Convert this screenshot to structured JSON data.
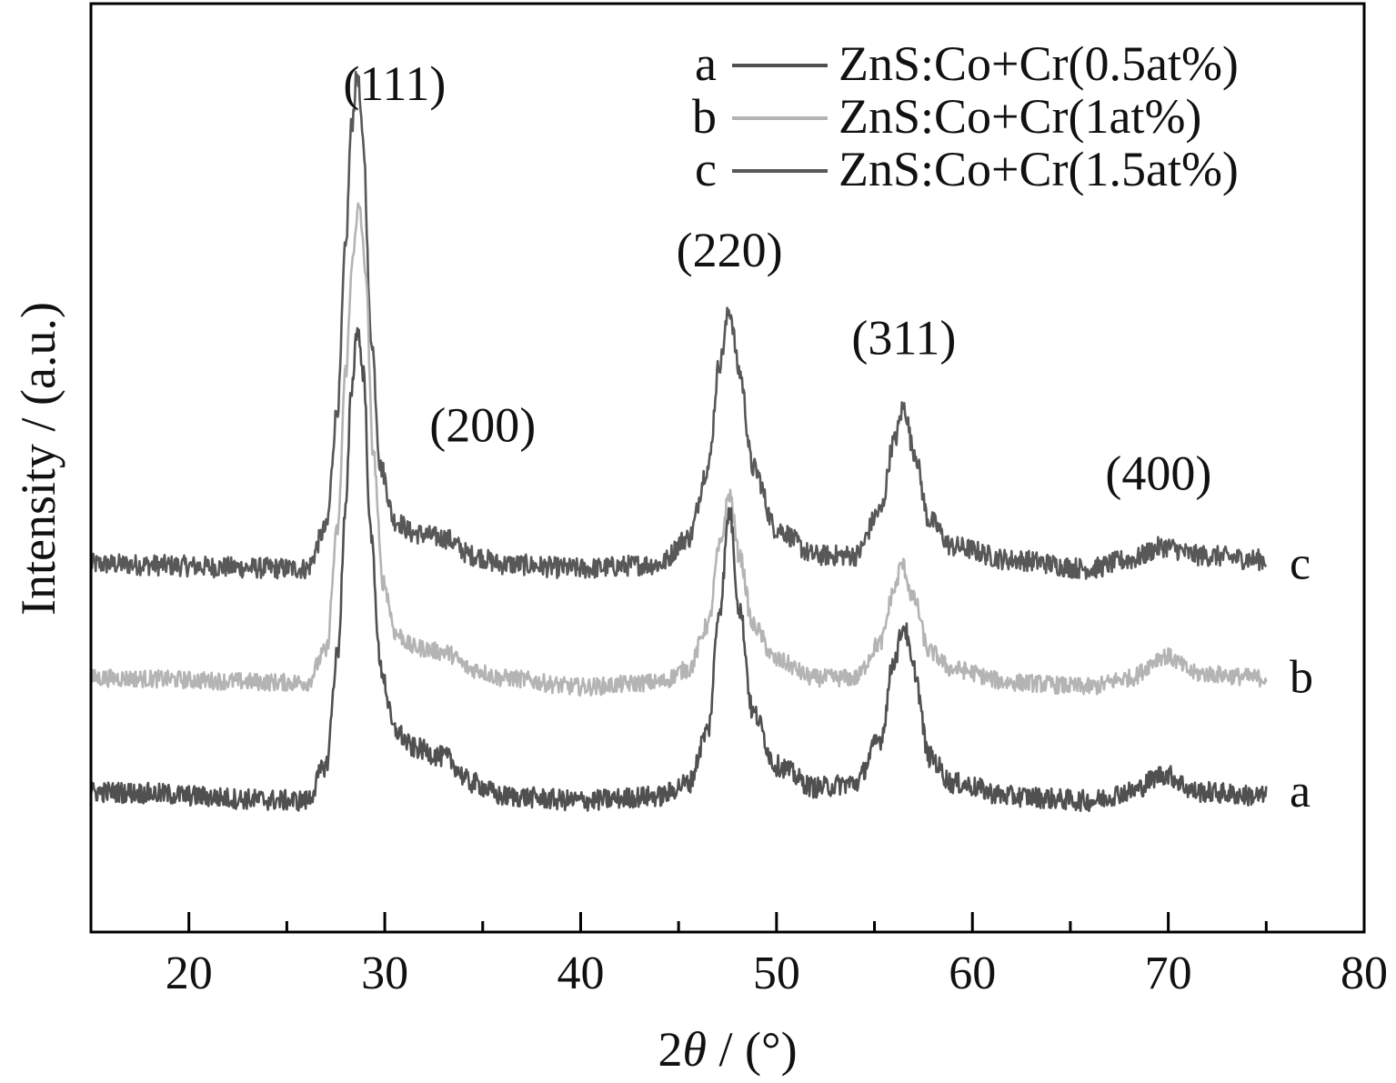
{
  "chart_data": {
    "type": "line",
    "title": "",
    "xlabel_prefix": "2",
    "xlabel_symbol": "θ",
    "xlabel_suffix": " / (°)",
    "ylabel": "Intensity / (a.u.)",
    "xlim": [
      15,
      80
    ],
    "xticks": [
      20,
      30,
      40,
      50,
      60,
      70,
      80
    ],
    "x_minor_ticks": [
      25,
      35,
      45,
      55,
      65,
      75
    ],
    "y_tick_labels": false,
    "grid": false,
    "legend_position": "top-right",
    "x_range": [
      15,
      75
    ],
    "series": [
      {
        "name": "ZnS:Co+Cr(0.5at%)",
        "key": "a",
        "color": "#505050",
        "baseline": 0.26,
        "noise": 0.012,
        "points": [
          [
            15,
            0.26
          ],
          [
            26,
            0.25
          ],
          [
            27,
            0.29
          ],
          [
            27.6,
            0.42
          ],
          [
            28.0,
            0.58
          ],
          [
            28.3,
            0.72
          ],
          [
            28.6,
            0.79
          ],
          [
            28.9,
            0.74
          ],
          [
            29.3,
            0.55
          ],
          [
            29.8,
            0.4
          ],
          [
            30.5,
            0.33
          ],
          [
            31.5,
            0.31
          ],
          [
            33,
            0.3
          ],
          [
            34.5,
            0.27
          ],
          [
            36,
            0.255
          ],
          [
            40,
            0.25
          ],
          [
            44,
            0.255
          ],
          [
            45.5,
            0.27
          ],
          [
            46.5,
            0.33
          ],
          [
            47.1,
            0.47
          ],
          [
            47.6,
            0.58
          ],
          [
            48.1,
            0.47
          ],
          [
            48.8,
            0.35
          ],
          [
            50,
            0.29
          ],
          [
            52,
            0.265
          ],
          [
            54,
            0.27
          ],
          [
            55.3,
            0.32
          ],
          [
            56.0,
            0.41
          ],
          [
            56.5,
            0.45
          ],
          [
            57.0,
            0.4
          ],
          [
            57.8,
            0.3
          ],
          [
            59,
            0.27
          ],
          [
            62,
            0.255
          ],
          [
            66,
            0.25
          ],
          [
            68,
            0.26
          ],
          [
            69.8,
            0.28
          ],
          [
            71.5,
            0.26
          ],
          [
            75,
            0.255
          ]
        ]
      },
      {
        "name": "ZnS:Co+Cr(1at%)",
        "key": "b",
        "color": "#b4b4b4",
        "baseline": 0.39,
        "noise": 0.01,
        "points": [
          [
            15,
            0.39
          ],
          [
            26,
            0.385
          ],
          [
            27,
            0.42
          ],
          [
            27.6,
            0.56
          ],
          [
            28.0,
            0.74
          ],
          [
            28.4,
            0.88
          ],
          [
            28.7,
            0.93
          ],
          [
            29.0,
            0.86
          ],
          [
            29.4,
            0.65
          ],
          [
            29.9,
            0.5
          ],
          [
            30.6,
            0.44
          ],
          [
            31.5,
            0.425
          ],
          [
            33,
            0.42
          ],
          [
            34.5,
            0.4
          ],
          [
            36,
            0.39
          ],
          [
            40,
            0.38
          ],
          [
            44,
            0.385
          ],
          [
            45.5,
            0.4
          ],
          [
            46.5,
            0.45
          ],
          [
            47.1,
            0.54
          ],
          [
            47.6,
            0.6
          ],
          [
            48.1,
            0.53
          ],
          [
            48.8,
            0.45
          ],
          [
            50,
            0.41
          ],
          [
            52,
            0.39
          ],
          [
            54,
            0.39
          ],
          [
            55.3,
            0.43
          ],
          [
            56.0,
            0.49
          ],
          [
            56.4,
            0.52
          ],
          [
            57.0,
            0.48
          ],
          [
            57.8,
            0.42
          ],
          [
            59,
            0.4
          ],
          [
            62,
            0.385
          ],
          [
            66,
            0.38
          ],
          [
            68,
            0.39
          ],
          [
            69.8,
            0.415
          ],
          [
            71.5,
            0.395
          ],
          [
            75,
            0.39
          ]
        ]
      },
      {
        "name": "ZnS:Co+Cr(1.5at%)",
        "key": "c",
        "color": "#585858",
        "baseline": 0.52,
        "noise": 0.012,
        "points": [
          [
            15,
            0.52
          ],
          [
            26,
            0.515
          ],
          [
            27,
            0.56
          ],
          [
            27.6,
            0.7
          ],
          [
            28.0,
            0.88
          ],
          [
            28.3,
            1.02
          ],
          [
            28.6,
            1.08
          ],
          [
            28.9,
            1.0
          ],
          [
            29.3,
            0.78
          ],
          [
            29.8,
            0.63
          ],
          [
            30.5,
            0.57
          ],
          [
            31.5,
            0.555
          ],
          [
            33,
            0.55
          ],
          [
            34.5,
            0.53
          ],
          [
            36,
            0.52
          ],
          [
            40,
            0.515
          ],
          [
            44,
            0.52
          ],
          [
            45.5,
            0.55
          ],
          [
            46.5,
            0.63
          ],
          [
            47.1,
            0.75
          ],
          [
            47.6,
            0.81
          ],
          [
            48.1,
            0.74
          ],
          [
            48.8,
            0.63
          ],
          [
            50,
            0.56
          ],
          [
            52,
            0.53
          ],
          [
            54,
            0.53
          ],
          [
            55.3,
            0.58
          ],
          [
            56.0,
            0.66
          ],
          [
            56.5,
            0.7
          ],
          [
            57.0,
            0.65
          ],
          [
            57.8,
            0.57
          ],
          [
            59,
            0.54
          ],
          [
            62,
            0.525
          ],
          [
            66,
            0.515
          ],
          [
            68,
            0.525
          ],
          [
            69.8,
            0.54
          ],
          [
            71.5,
            0.53
          ],
          [
            75,
            0.525
          ]
        ]
      }
    ],
    "peak_annotations": [
      {
        "label": "(111)",
        "x": 30.5,
        "y": 1.05
      },
      {
        "label": "(200)",
        "x": 35.0,
        "y": 0.66
      },
      {
        "label": "(220)",
        "x": 47.6,
        "y": 0.86
      },
      {
        "label": "(311)",
        "x": 56.5,
        "y": 0.76
      },
      {
        "label": "(400)",
        "x": 69.5,
        "y": 0.605
      }
    ],
    "ylim": [
      0.1,
      1.16
    ]
  }
}
